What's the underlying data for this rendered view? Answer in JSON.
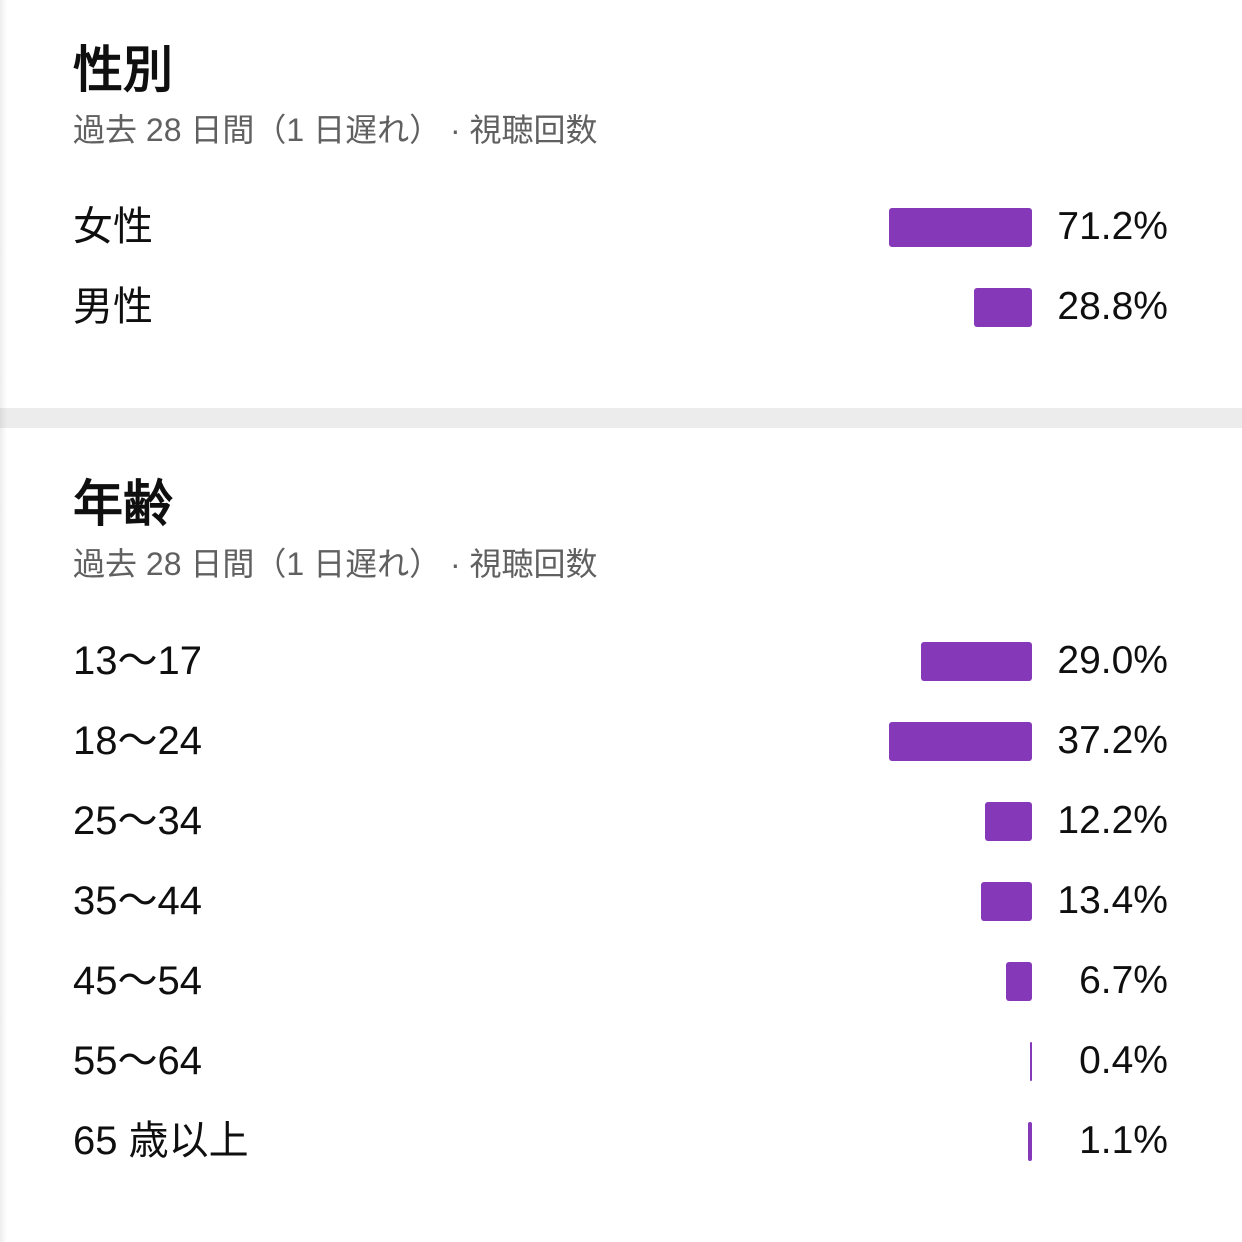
{
  "colors": {
    "bar": "#8539b9",
    "text": "#0f0f0f",
    "subtext": "#606060",
    "divider": "#ececec",
    "background": "#ffffff"
  },
  "chart_data": [
    {
      "type": "bar",
      "orientation": "horizontal",
      "grid": false,
      "title": "性別",
      "subtitle": "過去 28 日間（1 日遅れ） · 視聴回数",
      "categories": [
        "女性",
        "男性"
      ],
      "values": [
        71.2,
        28.8
      ],
      "value_labels": [
        "71.2%",
        "28.8%"
      ]
    },
    {
      "type": "bar",
      "orientation": "horizontal",
      "grid": false,
      "title": "年齢",
      "subtitle": "過去 28 日間（1 日遅れ） · 視聴回数",
      "categories": [
        "13〜17",
        "18〜24",
        "25〜34",
        "35〜44",
        "45〜54",
        "55〜64",
        "65 歳以上"
      ],
      "values": [
        29.0,
        37.2,
        12.2,
        13.4,
        6.7,
        0.4,
        1.1
      ],
      "value_labels": [
        "29.0%",
        "37.2%",
        "12.2%",
        "13.4%",
        "6.7%",
        "0.4%",
        "1.1%"
      ]
    }
  ]
}
